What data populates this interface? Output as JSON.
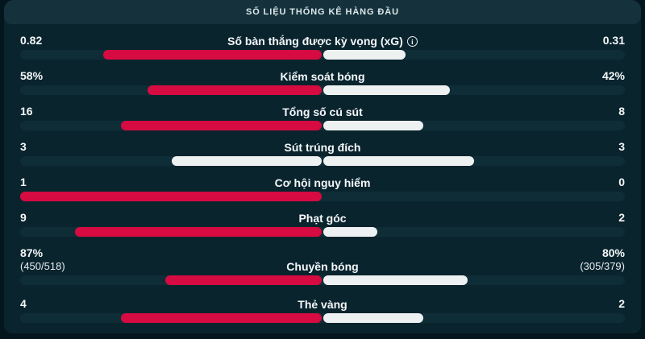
{
  "palette": {
    "page_background": "#04161d",
    "panel_background": "#0a242e",
    "header_background": "#15323c",
    "track": "#0e2d37",
    "bar_red": "#d50b41",
    "bar_white": "#eef1f1",
    "text": "#f4f8f9"
  },
  "header": {
    "title": "SỐ LIỆU THỐNG KÊ HÀNG ĐẦU"
  },
  "rows": [
    {
      "label": "Số bàn thắng được kỳ vọng (xG)",
      "has_info_icon": true,
      "left_value": "0.82",
      "right_value": "0.31",
      "left_num": 0.82,
      "right_num": 0.31,
      "left_color": "red",
      "right_color": "white"
    },
    {
      "label": "Kiểm soát bóng",
      "left_value": "58%",
      "right_value": "42%",
      "left_num": 58,
      "right_num": 42,
      "left_color": "red",
      "right_color": "white"
    },
    {
      "label": "Tổng số cú sút",
      "left_value": "16",
      "right_value": "8",
      "left_num": 16,
      "right_num": 8,
      "left_color": "red",
      "right_color": "white"
    },
    {
      "label": "Sút trúng đích",
      "left_value": "3",
      "right_value": "3",
      "left_num": 3,
      "right_num": 3,
      "left_color": "white",
      "right_color": "white"
    },
    {
      "label": "Cơ hội nguy hiểm",
      "left_value": "1",
      "right_value": "0",
      "left_num": 1,
      "right_num": 0,
      "left_color": "red",
      "right_color": "white"
    },
    {
      "label": "Phạt góc",
      "left_value": "9",
      "right_value": "2",
      "left_num": 9,
      "right_num": 2,
      "left_color": "red",
      "right_color": "white"
    },
    {
      "label": "Chuyền bóng",
      "left_value": "87%",
      "left_sub": "(450/518)",
      "right_value": "80%",
      "right_sub": "(305/379)",
      "left_num": 87,
      "right_num": 80,
      "left_color": "red",
      "right_color": "white"
    },
    {
      "label": "Thẻ vàng",
      "left_value": "4",
      "right_value": "2",
      "left_num": 4,
      "right_num": 2,
      "left_color": "red",
      "right_color": "white"
    }
  ],
  "chart_data": {
    "type": "bar",
    "title": "SỐ LIỆU THỐNG KÊ HÀNG ĐẦU",
    "categories": [
      "Số bàn thắng được kỳ vọng (xG)",
      "Kiểm soát bóng",
      "Tổng số cú sút",
      "Sút trúng đích",
      "Cơ hội nguy hiểm",
      "Phạt góc",
      "Chuyền bóng",
      "Thẻ vàng"
    ],
    "series": [
      {
        "name": "home",
        "color": "#d50b41",
        "values": [
          0.82,
          58,
          16,
          3,
          1,
          9,
          87,
          4
        ]
      },
      {
        "name": "away",
        "color": "#eef1f1",
        "values": [
          0.31,
          42,
          8,
          3,
          0,
          2,
          80,
          2
        ]
      }
    ],
    "layout": "paired horizontal bars growing outward from center, home on left, away on right"
  }
}
